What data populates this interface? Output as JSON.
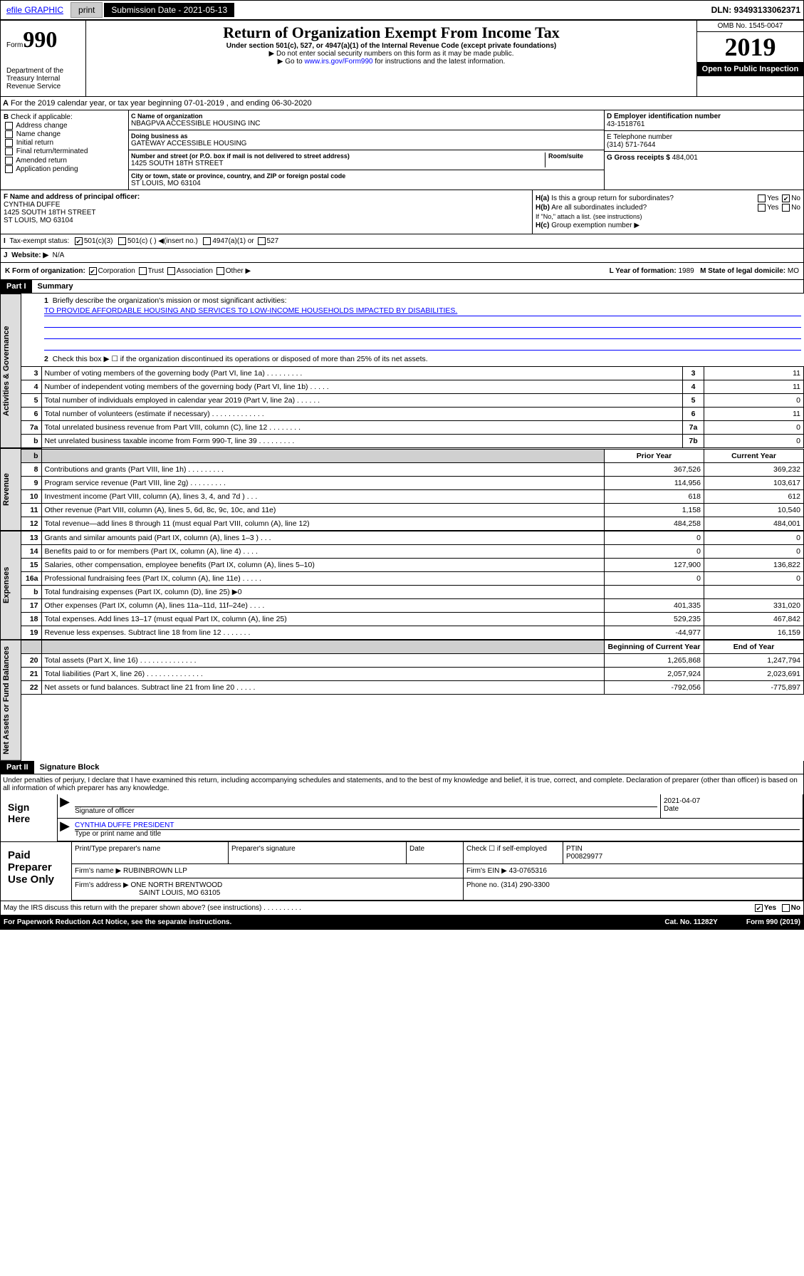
{
  "topbar": {
    "efile": "efile GRAPHIC",
    "print": "print",
    "subdate_label": "Submission Date - 2021-05-13",
    "dln": "DLN: 93493133062371"
  },
  "header": {
    "form_word": "Form",
    "form_num": "990",
    "title": "Return of Organization Exempt From Income Tax",
    "subtitle": "Under section 501(c), 527, or 4947(a)(1) of the Internal Revenue Code (except private foundations)",
    "note1": "▶ Do not enter social security numbers on this form as it may be made public.",
    "note2_pre": "▶ Go to ",
    "note2_link": "www.irs.gov/Form990",
    "note2_post": " for instructions and the latest information.",
    "omb": "OMB No. 1545-0047",
    "year": "2019",
    "open": "Open to Public Inspection",
    "dept": "Department of the Treasury\nInternal Revenue Service"
  },
  "a_line": "For the 2019 calendar year, or tax year beginning 07-01-2019    , and ending 06-30-2020",
  "b": {
    "label": "Check if applicable:",
    "opts": [
      "Address change",
      "Name change",
      "Initial return",
      "Final return/terminated",
      "Amended return",
      "Application pending"
    ]
  },
  "c": {
    "name_label": "C Name of organization",
    "name": "NBAGPVA ACCESSIBLE HOUSING INC",
    "dba_label": "Doing business as",
    "dba": "GATEWAY ACCESSIBLE HOUSING",
    "addr_label": "Number and street (or P.O. box if mail is not delivered to street address)",
    "room_label": "Room/suite",
    "addr": "1425 SOUTH 18TH STREET",
    "city_label": "City or town, state or province, country, and ZIP or foreign postal code",
    "city": "ST LOUIS, MO  63104"
  },
  "d": {
    "label": "D Employer identification number",
    "val": "43-1518761"
  },
  "e": {
    "label": "E Telephone number",
    "val": "(314) 571-7644"
  },
  "g": {
    "label": "G Gross receipts $",
    "val": "484,001"
  },
  "f": {
    "label": "F  Name and address of principal officer:",
    "name": "CYNTHIA DUFFE",
    "addr1": "1425 SOUTH 18TH STREET",
    "addr2": "ST LOUIS, MO  63104"
  },
  "h": {
    "a": "Is this a group return for subordinates?",
    "b": "Are all subordinates included?",
    "b_note": "If \"No,\" attach a list. (see instructions)",
    "c": "Group exemption number ▶",
    "yes": "Yes",
    "no": "No"
  },
  "tax_status": {
    "label": "Tax-exempt status:",
    "501c3": "501(c)(3)",
    "501c": "501(c) (   ) ◀(insert no.)",
    "4947": "4947(a)(1) or",
    "527": "527"
  },
  "j": {
    "label": "Website: ▶",
    "val": "N/A"
  },
  "k": {
    "label": "K Form of organization:",
    "corp": "Corporation",
    "trust": "Trust",
    "assoc": "Association",
    "other": "Other ▶"
  },
  "l": {
    "label": "L Year of formation:",
    "val": "1989"
  },
  "m": {
    "label": "M State of legal domicile:",
    "val": "MO"
  },
  "part1": {
    "hdr": "Part I",
    "title": "Summary"
  },
  "mission": {
    "q": "Briefly describe the organization's mission or most significant activities:",
    "text": "TO PROVIDE AFFORDABLE HOUSING AND SERVICES TO LOW-INCOME HOUSEHOLDS IMPACTED BY DISABILITIES."
  },
  "line2": "Check this box ▶ ☐  if the organization discontinued its operations or disposed of more than 25% of its net assets.",
  "rows_gov": [
    {
      "n": "3",
      "d": "Number of voting members of the governing body (Part VI, line 1a)   .    .    .    .    .    .    .    .    .",
      "b": "3",
      "v": "11"
    },
    {
      "n": "4",
      "d": "Number of independent voting members of the governing body (Part VI, line 1b)   .    .    .    .    .",
      "b": "4",
      "v": "11"
    },
    {
      "n": "5",
      "d": "Total number of individuals employed in calendar year 2019 (Part V, line 2a)   .    .    .    .    .    .",
      "b": "5",
      "v": "0"
    },
    {
      "n": "6",
      "d": "Total number of volunteers (estimate if necessary)   .    .    .    .    .    .    .    .    .    .    .    .    .",
      "b": "6",
      "v": "11"
    },
    {
      "n": "7a",
      "d": "Total unrelated business revenue from Part VIII, column (C), line 12   .    .    .    .    .    .    .    .",
      "b": "7a",
      "v": "0"
    },
    {
      "n": "b",
      "d": "Net unrelated business taxable income from Form 990-T, line 39   .    .    .    .    .    .    .    .    .",
      "b": "7b",
      "v": "0"
    }
  ],
  "col_hdrs": {
    "prior": "Prior Year",
    "current": "Current Year"
  },
  "rows_rev": [
    {
      "n": "8",
      "d": "Contributions and grants (Part VIII, line 1h)   .    .    .    .    .    .    .    .    .",
      "p": "367,526",
      "c": "369,232"
    },
    {
      "n": "9",
      "d": "Program service revenue (Part VIII, line 2g)   .    .    .    .    .    .    .    .    .",
      "p": "114,956",
      "c": "103,617"
    },
    {
      "n": "10",
      "d": "Investment income (Part VIII, column (A), lines 3, 4, and 7d )   .    .    .",
      "p": "618",
      "c": "612"
    },
    {
      "n": "11",
      "d": "Other revenue (Part VIII, column (A), lines 5, 6d, 8c, 9c, 10c, and 11e)",
      "p": "1,158",
      "c": "10,540"
    },
    {
      "n": "12",
      "d": "Total revenue—add lines 8 through 11 (must equal Part VIII, column (A), line 12)",
      "p": "484,258",
      "c": "484,001"
    }
  ],
  "rows_exp": [
    {
      "n": "13",
      "d": "Grants and similar amounts paid (Part IX, column (A), lines 1–3 )   .    .    .",
      "p": "0",
      "c": "0"
    },
    {
      "n": "14",
      "d": "Benefits paid to or for members (Part IX, column (A), line 4)   .    .    .    .",
      "p": "0",
      "c": "0"
    },
    {
      "n": "15",
      "d": "Salaries, other compensation, employee benefits (Part IX, column (A), lines 5–10)",
      "p": "127,900",
      "c": "136,822"
    },
    {
      "n": "16a",
      "d": "Professional fundraising fees (Part IX, column (A), line 11e)   .    .    .    .    .",
      "p": "0",
      "c": "0"
    },
    {
      "n": "b",
      "d": "Total fundraising expenses (Part IX, column (D), line 25) ▶0",
      "p": "",
      "c": "",
      "shaded": true
    },
    {
      "n": "17",
      "d": "Other expenses (Part IX, column (A), lines 11a–11d, 11f–24e)   .    .    .    .",
      "p": "401,335",
      "c": "331,020"
    },
    {
      "n": "18",
      "d": "Total expenses. Add lines 13–17 (must equal Part IX, column (A), line 25)",
      "p": "529,235",
      "c": "467,842"
    },
    {
      "n": "19",
      "d": "Revenue less expenses. Subtract line 18 from line 12   .    .    .    .    .    .    .",
      "p": "-44,977",
      "c": "16,159"
    }
  ],
  "col_hdrs2": {
    "begin": "Beginning of Current Year",
    "end": "End of Year"
  },
  "rows_net": [
    {
      "n": "20",
      "d": "Total assets (Part X, line 16)   .    .    .    .    .    .    .    .    .    .    .    .    .    .",
      "p": "1,265,868",
      "c": "1,247,794"
    },
    {
      "n": "21",
      "d": "Total liabilities (Part X, line 26)   .    .    .    .    .    .    .    .    .    .    .    .    .    .",
      "p": "2,057,924",
      "c": "2,023,691"
    },
    {
      "n": "22",
      "d": "Net assets or fund balances. Subtract line 21 from line 20   .    .    .    .    .",
      "p": "-792,056",
      "c": "-775,897"
    }
  ],
  "vtabs": {
    "gov": "Activities & Governance",
    "rev": "Revenue",
    "exp": "Expenses",
    "net": "Net Assets or Fund Balances"
  },
  "part2": {
    "hdr": "Part II",
    "title": "Signature Block"
  },
  "penalty": "Under penalties of perjury, I declare that I have examined this return, including accompanying schedules and statements, and to the best of my knowledge and belief, it is true, correct, and complete. Declaration of preparer (other than officer) is based on all information of which preparer has any knowledge.",
  "sign": {
    "here": "Sign Here",
    "sig_label": "Signature of officer",
    "date": "2021-04-07",
    "date_label": "Date",
    "name": "CYNTHIA DUFFE PRESIDENT",
    "name_label": "Type or print name and title"
  },
  "paid": {
    "title": "Paid Preparer Use Only",
    "h1": "Print/Type preparer's name",
    "h2": "Preparer's signature",
    "h3": "Date",
    "check": "Check ☐ if self-employed",
    "ptin_l": "PTIN",
    "ptin": "P00829977",
    "firm_l": "Firm's name    ▶",
    "firm": "RUBINBROWN LLP",
    "ein_l": "Firm's EIN ▶",
    "ein": "43-0765316",
    "addr_l": "Firm's address ▶",
    "addr1": "ONE NORTH BRENTWOOD",
    "addr2": "SAINT LOUIS, MO  63105",
    "phone_l": "Phone no.",
    "phone": "(314) 290-3300"
  },
  "discuss": "May the IRS discuss this return with the preparer shown above? (see instructions)    .    .    .    .    .    .    .    .    .    .",
  "footer": {
    "pra": "For Paperwork Reduction Act Notice, see the separate instructions.",
    "cat": "Cat. No. 11282Y",
    "form": "Form 990 (2019)"
  }
}
